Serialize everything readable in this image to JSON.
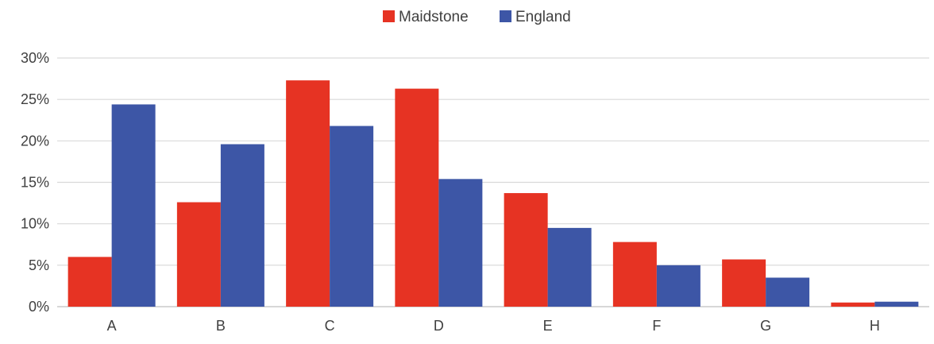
{
  "chart_data": {
    "type": "bar",
    "categories": [
      "A",
      "B",
      "C",
      "D",
      "E",
      "F",
      "G",
      "H"
    ],
    "series": [
      {
        "name": "Maidstone",
        "color": "#e63323",
        "values": [
          6.0,
          12.6,
          27.3,
          26.3,
          13.7,
          7.8,
          5.7,
          0.5
        ]
      },
      {
        "name": "England",
        "color": "#3d56a6",
        "values": [
          24.4,
          19.6,
          21.8,
          15.4,
          9.5,
          5.0,
          3.5,
          0.6
        ]
      }
    ],
    "y_ticks": [
      "0%",
      "5%",
      "10%",
      "15%",
      "20%",
      "25%",
      "30%"
    ],
    "ylim": [
      0,
      30
    ],
    "y_unit": "%",
    "grid": true,
    "legend_position": "top-center"
  }
}
